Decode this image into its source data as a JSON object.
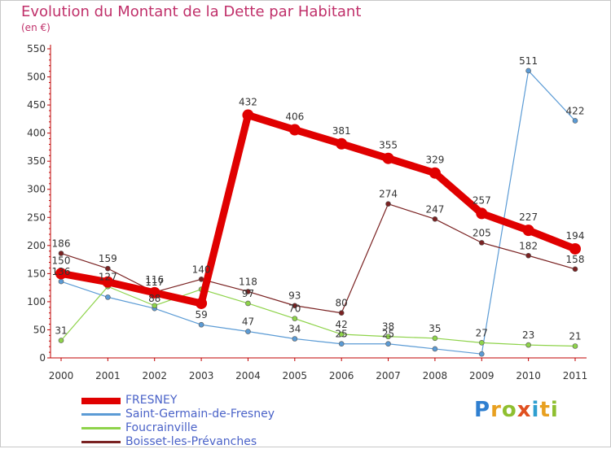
{
  "title": "Evolution du Montant de la Dette par Habitant",
  "unit": "(en €)",
  "logo": {
    "text": "Proxiti",
    "letters": [
      {
        "ch": "P",
        "color": "#2f7fd0"
      },
      {
        "ch": "r",
        "color": "#e8a020"
      },
      {
        "ch": "o",
        "color": "#8fbf30"
      },
      {
        "ch": "x",
        "color": "#e05020"
      },
      {
        "ch": "i",
        "color": "#2f9fd0"
      },
      {
        "ch": "t",
        "color": "#e8a020"
      },
      {
        "ch": "i",
        "color": "#8fbf30"
      }
    ]
  },
  "chart_data": {
    "type": "line",
    "title": "Evolution du Montant de la Dette par Habitant",
    "ylabel": "(en €)",
    "ylim": [
      0,
      550
    ],
    "yticks": [
      0,
      50,
      100,
      150,
      200,
      250,
      300,
      350,
      400,
      450,
      500,
      550
    ],
    "categories": [
      "2000",
      "2001",
      "2002",
      "2003",
      "2004",
      "2005",
      "2006",
      "2007",
      "2008",
      "2009",
      "2010",
      "2011"
    ],
    "grid": false,
    "legend": "bottom-left",
    "series": [
      {
        "name": "FRESNEY",
        "color": "#e00000",
        "width": 9,
        "marker": 7,
        "values": [
          150,
          135,
          116,
          97,
          432,
          406,
          381,
          355,
          329,
          257,
          227,
          194
        ],
        "labels": [
          "150",
          "",
          "116",
          "",
          "432",
          "406",
          "381",
          "355",
          "329",
          "257",
          "227",
          "194"
        ]
      },
      {
        "name": "Saint-Germain-de-Fresney",
        "color": "#5b9bd5",
        "width": 1.2,
        "marker": 3,
        "values": [
          136,
          108,
          88,
          59,
          47,
          34,
          25,
          25,
          16,
          7,
          511,
          422
        ],
        "labels": [
          "136",
          "",
          "88",
          "59",
          "47",
          "34",
          "25",
          "25",
          "",
          "",
          "511",
          "422"
        ]
      },
      {
        "name": "Foucrainville",
        "color": "#8ed34a",
        "width": 1.2,
        "marker": 3,
        "values": [
          31,
          127,
          93,
          122,
          97,
          70,
          42,
          38,
          35,
          27,
          23,
          21
        ],
        "labels": [
          "31",
          "127",
          "",
          "",
          "97",
          "70",
          "42",
          "38",
          "35",
          "27",
          "23",
          "21"
        ]
      },
      {
        "name": "Boisset-les-Prévanches",
        "color": "#7a2222",
        "width": 1.2,
        "marker": 3,
        "values": [
          186,
          159,
          117,
          140,
          118,
          93,
          80,
          274,
          247,
          205,
          182,
          158
        ],
        "labels": [
          "186",
          "159",
          "117",
          "140",
          "118",
          "93",
          "80",
          "274",
          "247",
          "205",
          "182",
          "158"
        ]
      }
    ]
  }
}
